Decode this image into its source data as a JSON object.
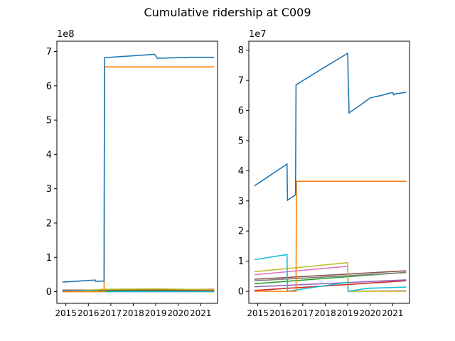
{
  "chart_data": {
    "title": "Cumulative ridership at C009",
    "x_tick_labels": [
      "2015",
      "2016",
      "2017",
      "2018",
      "2019",
      "2020",
      "2021"
    ],
    "x_tick_values": [
      2015,
      2016,
      2017,
      2018,
      2019,
      2020,
      2021
    ],
    "colors": [
      "#1f77b4",
      "#ff7f0e",
      "#2ca02c",
      "#d62728",
      "#9467bd",
      "#8c564b",
      "#e377c2",
      "#7f7f7f",
      "#bcbd22",
      "#17becf"
    ],
    "charts": [
      {
        "type": "line",
        "xlim": [
          2014.6,
          2021.75
        ],
        "ylim": [
          -0.34,
          7.3
        ],
        "scale_label": "1e8",
        "y_ticks": [
          0,
          1,
          2,
          3,
          4,
          5,
          6,
          7
        ],
        "y_tick_labels": [
          "0",
          "1",
          "2",
          "3",
          "4",
          "5",
          "6",
          "7"
        ],
        "series": [
          {
            "color": "#1f77b4",
            "x": [
              2014.85,
              2016.3,
              2016.32,
              2016.7,
              2016.72,
              2018.95,
              2019.07,
              2019.9,
              2020.5,
              2021.6
            ],
            "y": [
              0.28,
              0.34,
              0.3,
              0.31,
              6.82,
              6.92,
              6.8,
              6.82,
              6.83,
              6.83
            ]
          },
          {
            "color": "#ff7f0e",
            "x": [
              2014.85,
              2016.7,
              2016.72,
              2021.6
            ],
            "y": [
              0.0,
              0.0,
              6.55,
              6.55
            ]
          },
          {
            "color": "#17becf",
            "x": [
              2014.85,
              2016.4,
              2016.42,
              2021.6
            ],
            "y": [
              0.02,
              0.03,
              0.0,
              0.0
            ]
          },
          {
            "color": "#bcbd22",
            "x": [
              2014.85,
              2016.7,
              2019.0,
              2021.6
            ],
            "y": [
              0.0,
              0.07,
              0.08,
              0.06
            ]
          },
          {
            "color": "#8c564b",
            "x": [
              2014.85,
              2021.6
            ],
            "y": [
              0.04,
              0.07
            ]
          },
          {
            "color": "#2ca02c",
            "x": [
              2014.85,
              2021.6
            ],
            "y": [
              0.02,
              0.06
            ]
          },
          {
            "color": "#d62728",
            "x": [
              2014.85,
              2021.6
            ],
            "y": [
              0.005,
              0.035
            ]
          },
          {
            "color": "#e377c2",
            "x": [
              2014.85,
              2021.6
            ],
            "y": [
              0.05,
              0.005
            ]
          }
        ]
      },
      {
        "type": "line",
        "xlim": [
          2014.6,
          2021.75
        ],
        "ylim": [
          -0.4,
          8.3
        ],
        "scale_label": "1e7",
        "y_ticks": [
          0,
          1,
          2,
          3,
          4,
          5,
          6,
          7,
          8
        ],
        "y_tick_labels": [
          "0",
          "1",
          "2",
          "3",
          "4",
          "5",
          "6",
          "7",
          "8"
        ],
        "series": [
          {
            "color": "#1f77b4",
            "x": [
              2014.85,
              2016.3,
              2016.32,
              2016.68,
              2016.7,
              2018.0,
              2019.0,
              2019.02,
              2019.06,
              2019.6,
              2020.0,
              2020.5,
              2021.0,
              2021.05,
              2021.1,
              2021.6
            ],
            "y": [
              3.5,
              4.22,
              3.02,
              3.2,
              6.85,
              7.45,
              7.9,
              7.12,
              5.92,
              6.2,
              6.42,
              6.5,
              6.6,
              6.52,
              6.55,
              6.6
            ]
          },
          {
            "color": "#ff7f0e",
            "x": [
              2014.85,
              2016.7,
              2016.72,
              2021.6
            ],
            "y": [
              0.0,
              0.0,
              3.65,
              3.65
            ]
          },
          {
            "color": "#17becf",
            "x": [
              2014.85,
              2016.3,
              2016.32,
              2019.0,
              2019.02,
              2019.9,
              2021.6
            ],
            "y": [
              1.05,
              1.22,
              0.0,
              0.3,
              0.0,
              0.1,
              0.14
            ]
          },
          {
            "color": "#bcbd22",
            "x": [
              2014.85,
              2019.0,
              2019.02,
              2021.6
            ],
            "y": [
              0.65,
              0.95,
              0.0,
              0.0
            ]
          },
          {
            "color": "#8c564b",
            "x": [
              2014.85,
              2021.6
            ],
            "y": [
              0.4,
              0.68
            ]
          },
          {
            "color": "#7f7f7f",
            "x": [
              2014.85,
              2021.6
            ],
            "y": [
              0.35,
              0.62
            ]
          },
          {
            "color": "#2ca02c",
            "x": [
              2014.85,
              2021.6
            ],
            "y": [
              0.25,
              0.63
            ]
          },
          {
            "color": "#e377c2",
            "x": [
              2014.85,
              2019.0,
              2019.02,
              2021.6
            ],
            "y": [
              0.55,
              0.83,
              0.0,
              0.02
            ]
          },
          {
            "color": "#9467bd",
            "x": [
              2014.85,
              2021.6
            ],
            "y": [
              0.15,
              0.38
            ]
          },
          {
            "color": "#d62728",
            "x": [
              2014.85,
              2021.6
            ],
            "y": [
              0.03,
              0.35
            ]
          }
        ]
      }
    ]
  }
}
